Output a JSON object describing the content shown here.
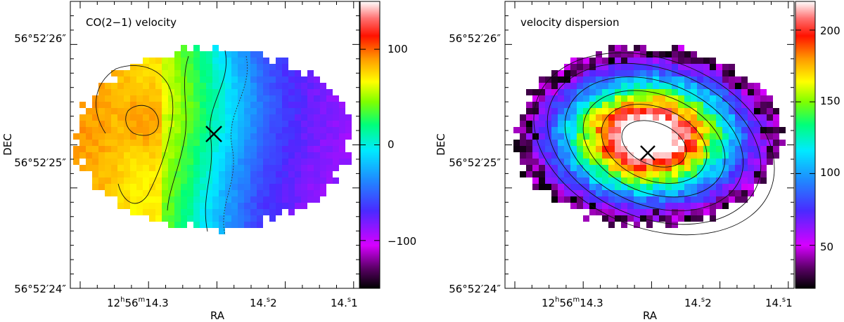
{
  "chart_data": [
    {
      "type": "heatmap",
      "title": "CO(2−1) velocity",
      "xlabel": "RA",
      "ylabel": "DEC",
      "x_ticks": [
        {
          "main": "12",
          "sup1": "h",
          "mid": "56",
          "sup2": "m",
          "tail": "14.3"
        },
        {
          "main": "14.",
          "sup1": "s",
          "tail": "2"
        },
        {
          "main": "14.",
          "sup1": "s",
          "tail": "1"
        }
      ],
      "y_ticks": [
        "56°52′26″",
        "56°52′25″",
        "56°52′24″"
      ],
      "colorbar": {
        "ticks": [
          "100",
          "0",
          "−100"
        ],
        "values": [
          100,
          0,
          -100
        ],
        "range": [
          -150,
          150
        ],
        "colormap": "rainbow"
      },
      "map_description": "velocity gradient from about +90 (east, left) to about -90 (west, right)",
      "center_marker": "×"
    },
    {
      "type": "heatmap",
      "title": "velocity dispersion",
      "xlabel": "RA",
      "ylabel": "DEC",
      "x_ticks": [
        {
          "main": "12",
          "sup1": "h",
          "mid": "56",
          "sup2": "m",
          "tail": "14.3"
        },
        {
          "main": "14.",
          "sup1": "s",
          "tail": "2"
        },
        {
          "main": "14.",
          "sup1": "s",
          "tail": "1"
        }
      ],
      "y_ticks": [
        "56°52′26″",
        "56°52′25″",
        "56°52′24″"
      ],
      "colorbar": {
        "ticks": [
          "200",
          "150",
          "100",
          "50"
        ],
        "values": [
          200,
          150,
          100,
          50
        ],
        "range": [
          20,
          220
        ],
        "colormap": "rainbow"
      },
      "map_description": "centrally peaked dispersion, about 215 at centre falling to about 40 at edges",
      "center_marker": "×"
    }
  ]
}
